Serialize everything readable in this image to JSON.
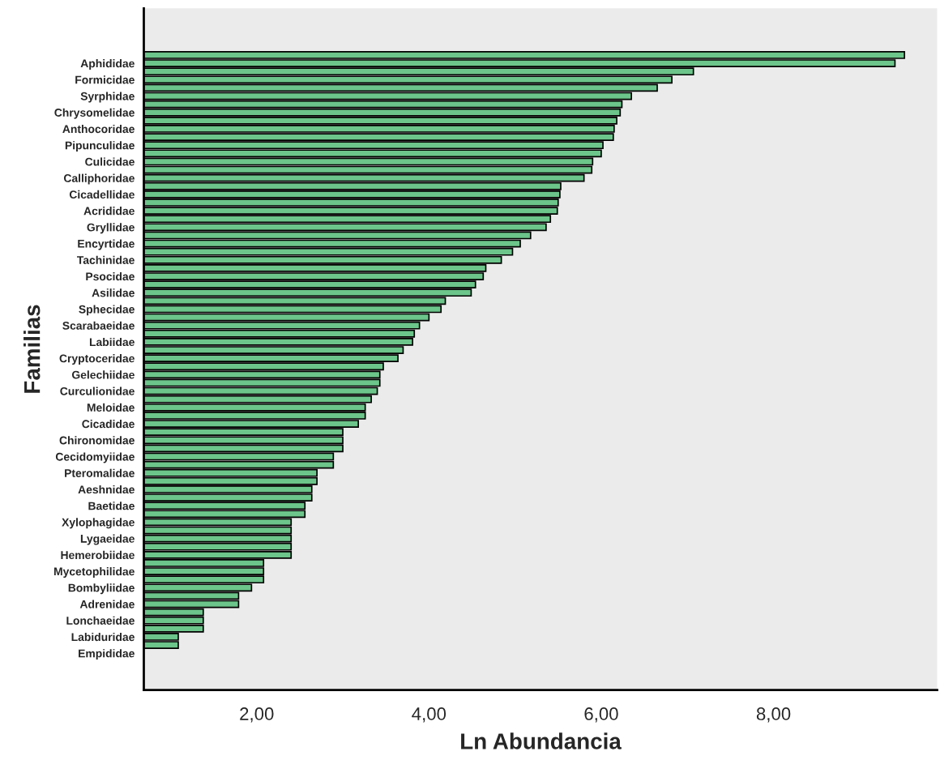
{
  "chart_data": {
    "type": "bar",
    "orientation": "horizontal",
    "xlabel": "Ln Abundancia",
    "ylabel": "Familias",
    "categories": [
      null,
      "Aphididae",
      null,
      "Formicidae",
      null,
      "Syrphidae",
      null,
      "Chrysomelidae",
      null,
      "Anthocoridae",
      null,
      "Pipunculidae",
      null,
      "Culicidae",
      null,
      "Calliphoridae",
      null,
      "Cicadellidae",
      null,
      "Acrididae",
      null,
      "Gryllidae",
      null,
      "Encyrtidae",
      null,
      "Tachinidae",
      null,
      "Psocidae",
      null,
      "Asilidae",
      null,
      "Sphecidae",
      null,
      "Scarabaeidae",
      null,
      "Labiidae",
      null,
      "Cryptoceridae",
      null,
      "Gelechiidae",
      null,
      "Curculionidae",
      null,
      "Meloidae",
      null,
      "Cicadidae",
      null,
      "Chironomidae",
      null,
      "Cecidomyiidae",
      null,
      "Pteromalidae",
      null,
      "Aeshnidae",
      null,
      "Baetidae",
      null,
      "Xylophagidae",
      null,
      "Lygaeidae",
      null,
      "Hemerobiidae",
      null,
      "Mycetophilidae",
      null,
      "Bombyliidae",
      null,
      "Adrenidae",
      null,
      "Lonchaeidae",
      null,
      "Labiduridae",
      null,
      "Empididae"
    ],
    "values": [
      9.52,
      9.41,
      7.07,
      6.82,
      6.65,
      6.35,
      6.24,
      6.22,
      6.18,
      6.15,
      6.14,
      6.02,
      6.0,
      5.9,
      5.89,
      5.8,
      5.53,
      5.52,
      5.5,
      5.49,
      5.41,
      5.36,
      5.18,
      5.06,
      4.97,
      4.84,
      4.66,
      4.63,
      4.54,
      4.49,
      4.19,
      4.14,
      4.0,
      3.89,
      3.83,
      3.81,
      3.7,
      3.64,
      3.47,
      3.43,
      3.43,
      3.4,
      3.33,
      3.26,
      3.26,
      3.18,
      3.0,
      3.0,
      3.0,
      2.89,
      2.89,
      2.7,
      2.7,
      2.64,
      2.64,
      2.56,
      2.56,
      2.4,
      2.4,
      2.4,
      2.4,
      2.4,
      2.08,
      2.08,
      2.08,
      1.94,
      1.79,
      1.79,
      1.38,
      1.38,
      1.38,
      1.09,
      1.09,
      null
    ],
    "color": "#6cc58a",
    "xlim": [
      0.69,
      9.9
    ],
    "xticks": [
      {
        "value": 2,
        "label": "2,00"
      },
      {
        "value": 4,
        "label": "4,00"
      },
      {
        "value": 6,
        "label": "6,00"
      },
      {
        "value": 8,
        "label": "8,00"
      }
    ],
    "grid": false,
    "legend": false
  }
}
